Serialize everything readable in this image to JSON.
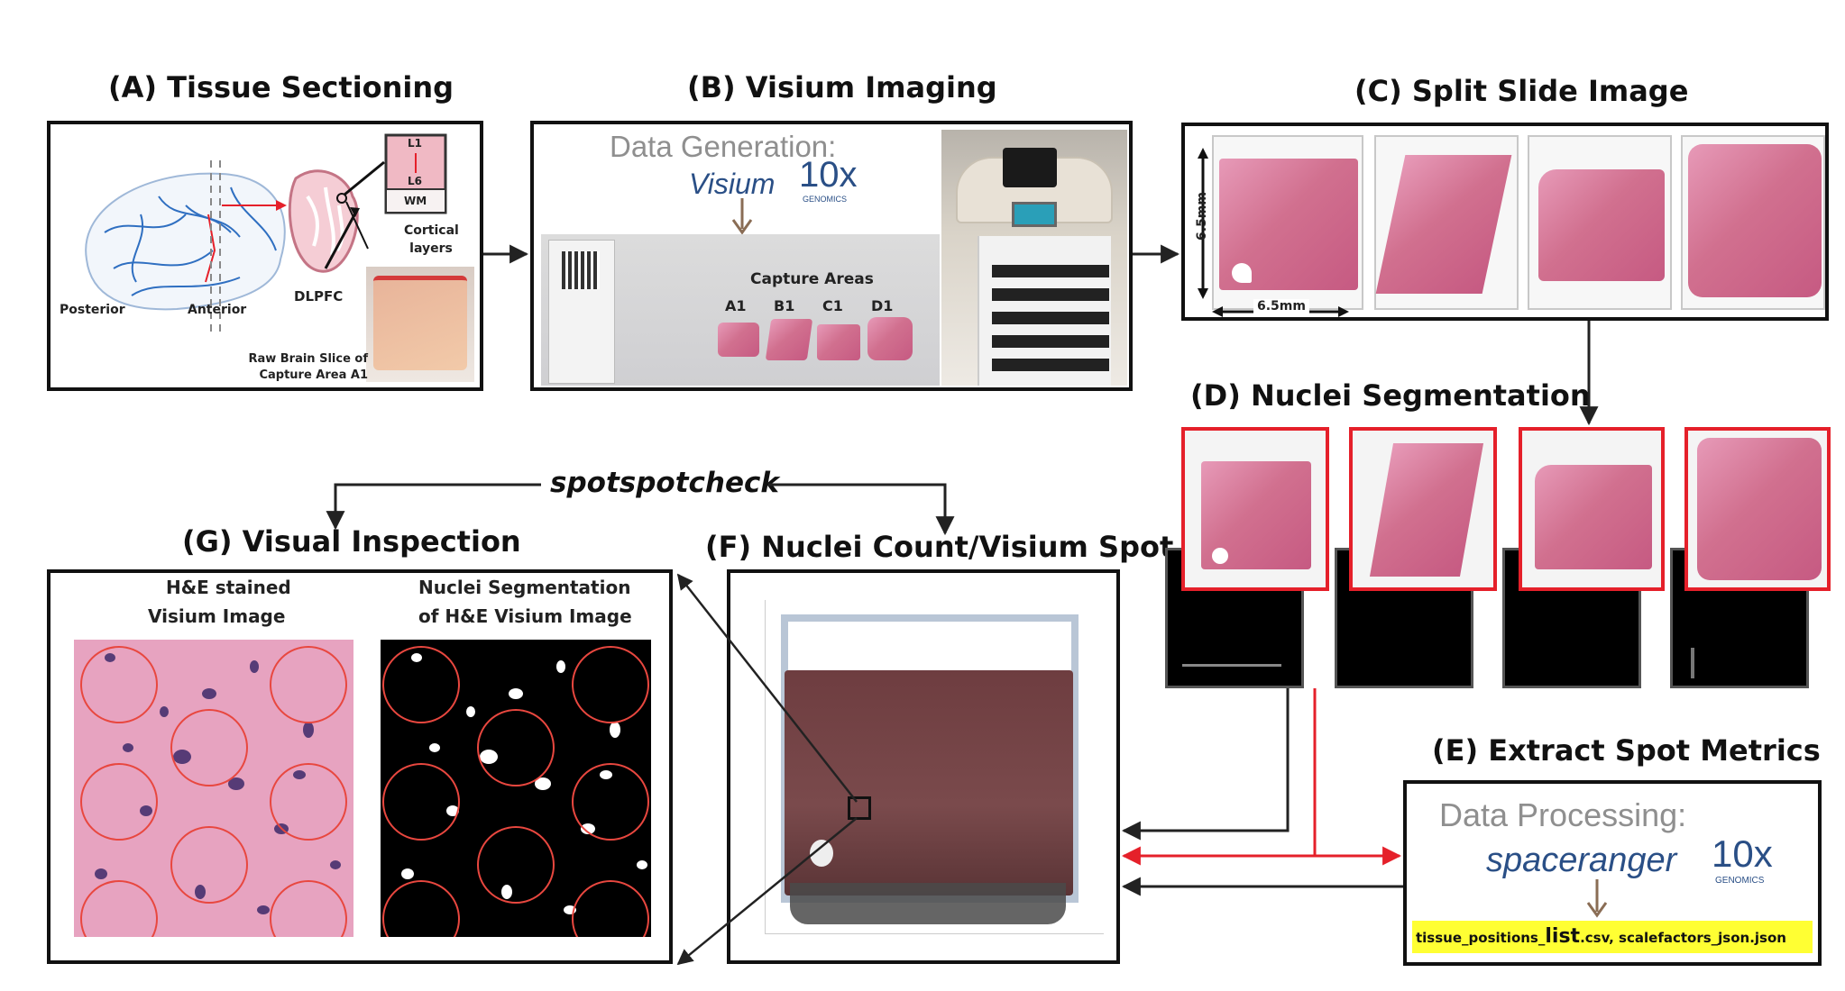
{
  "panels": {
    "A": {
      "title": "(A) Tissue Sectioning",
      "labels": {
        "posterior": "Posterior",
        "anterior": "Anterior",
        "dlpfc": "DLPFC",
        "cortical_layers": "Cortical layers",
        "layer_top": "L1",
        "layer_mid": "L6",
        "layer_bottom": "WM",
        "raw_slice": "Raw Brain Slice of Capture Area A1"
      }
    },
    "B": {
      "title": "(B) Visium Imaging",
      "data_generation": "Data Generation:",
      "visium": "Visium",
      "tenx": "10x",
      "genomics": "GENOMICS",
      "capture_areas": "Capture Areas",
      "areas": [
        "A1",
        "B1",
        "C1",
        "D1"
      ]
    },
    "C": {
      "title": "(C) Split Slide Image",
      "dim_vertical": "6.5mm",
      "dim_horizontal": "6.5mm"
    },
    "D": {
      "title": "(D) Nuclei Segmentation"
    },
    "E": {
      "title": "(E) Extract Spot Metrics",
      "data_processing": "Data Processing:",
      "spaceranger": "spaceranger",
      "tenx": "10x",
      "genomics": "GENOMICS",
      "files_part1": "tissue_positions_",
      "files_highlight": "list",
      "files_part2": ".csv, scalefactors_json.json"
    },
    "F": {
      "title": "(F) Nuclei Count/Visium Spot"
    },
    "G": {
      "title": "(G) Visual Inspection",
      "left_caption_1": "H&E stained",
      "left_caption_2": "Visium Image",
      "right_caption_1": "Nuclei Segmentation",
      "right_caption_2": "of H&E Visium Image"
    }
  },
  "tool_label": "spotspotcheck",
  "colors": {
    "arrow_black": "#222222",
    "arrow_red": "#e5202a",
    "highlight_yellow": "#ffff33",
    "tissue_pink": "#d1708f"
  }
}
